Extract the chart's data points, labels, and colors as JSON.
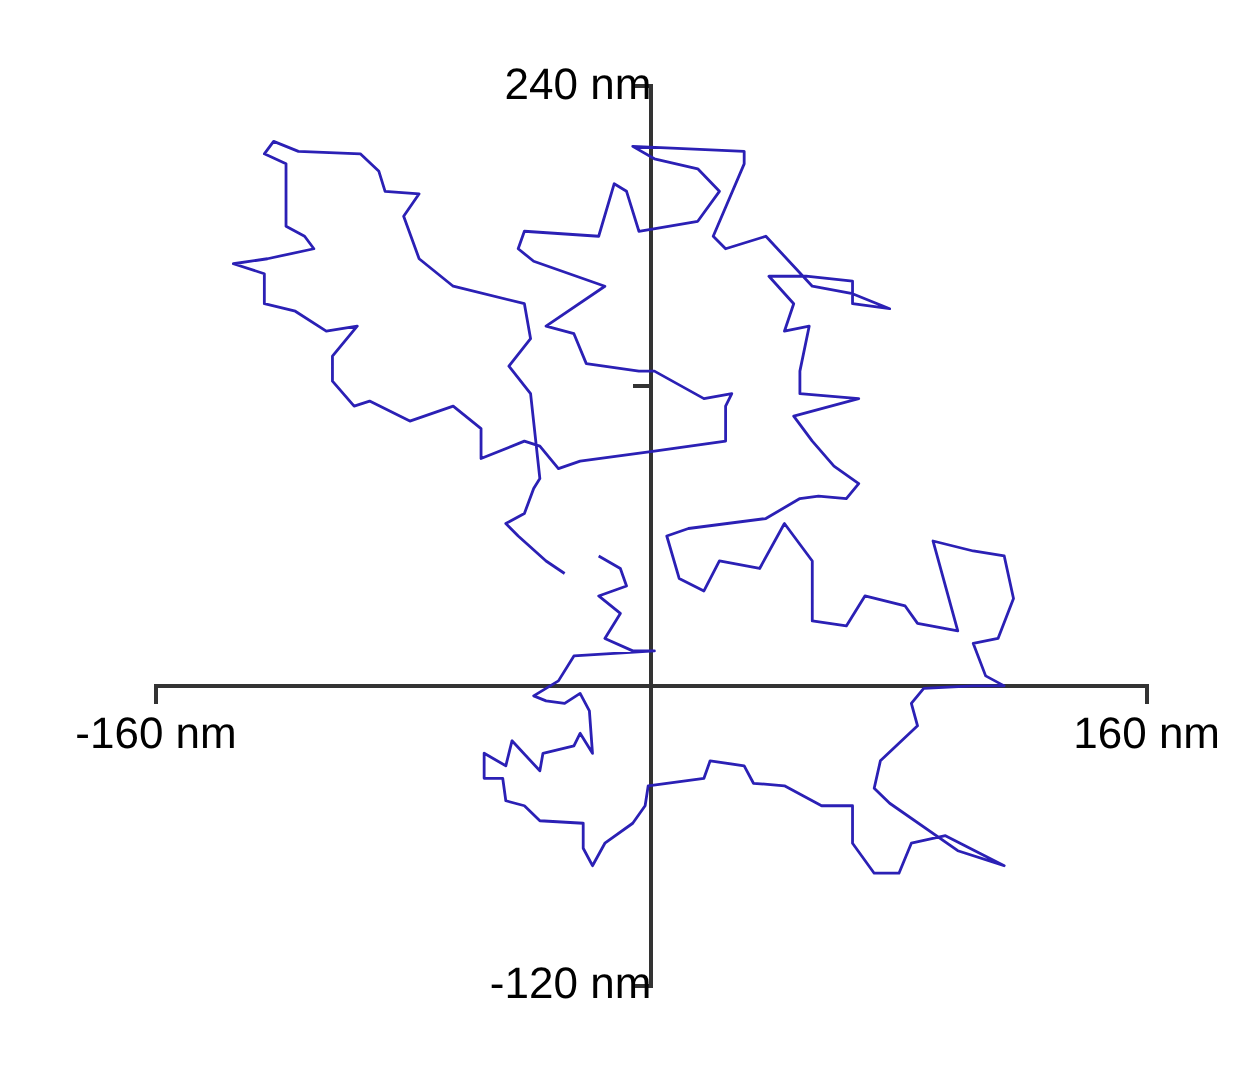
{
  "chart_data": {
    "type": "line",
    "line_style": "solid",
    "xlim": [
      -160,
      160
    ],
    "ylim": [
      -120,
      240
    ],
    "xticks": [
      {
        "value": -160,
        "label": "-160 nm"
      },
      {
        "value": 160,
        "label": "160 nm"
      }
    ],
    "yticks": [
      {
        "value": -120,
        "label": "-120 nm"
      },
      {
        "value": 120,
        "label": null
      },
      {
        "value": 240,
        "label": "240 nm"
      }
    ],
    "series": [
      {
        "color": "#2b20b5",
        "x": [
          -17,
          -10,
          -8,
          -17,
          -10,
          -15,
          -6,
          1,
          -25,
          -30,
          -38,
          -34,
          -28,
          -23,
          -20,
          -19,
          -23,
          -25,
          -35,
          -36,
          -45,
          -47,
          -54,
          -54,
          -48,
          -47,
          -41,
          -36,
          -22,
          -22,
          -19,
          -15,
          -6,
          -2,
          -1,
          5,
          17,
          19,
          30,
          33,
          43,
          55,
          65,
          65,
          72,
          80,
          84,
          95,
          114,
          99,
          77,
          72,
          74,
          80,
          86,
          84,
          88,
          104,
          114,
          108,
          104,
          112,
          117,
          114,
          104,
          91,
          99,
          86,
          82,
          69,
          63,
          52,
          52,
          43,
          35,
          22,
          17,
          9,
          5,
          12,
          37,
          48,
          54,
          63,
          67,
          59,
          52,
          46,
          67,
          48,
          48,
          51,
          43,
          46,
          38,
          50,
          65,
          65,
          77,
          65,
          52,
          37,
          24,
          20,
          30,
          30,
          -6,
          1,
          15,
          22,
          15,
          -4,
          -8,
          -12,
          -17,
          -41,
          -43,
          -38,
          -15,
          -34,
          -25,
          -21,
          -4,
          1,
          17,
          26,
          24,
          24,
          1,
          -23,
          -30,
          -36,
          -41,
          -55,
          -55,
          -64,
          -78,
          -91,
          -96,
          -103,
          -103,
          -95,
          -105,
          -115,
          -125,
          -125,
          -135,
          -124,
          -109,
          -112,
          -118,
          -118,
          -125,
          -122,
          -114,
          -94,
          -88,
          -86,
          -75,
          -80,
          -75,
          -64,
          -41,
          -39,
          -46,
          -39,
          -36,
          -38,
          -41,
          -47,
          -43,
          -34,
          -28
        ],
        "values": [
          52,
          47,
          40,
          36,
          29,
          19,
          14,
          14,
          12,
          2,
          -4,
          -6,
          -7,
          -3,
          -10,
          -27,
          -19,
          -24,
          -27,
          -34,
          -22,
          -32,
          -27,
          -37,
          -37,
          -46,
          -48,
          -54,
          -55,
          -65,
          -72,
          -63,
          -55,
          -48,
          -40,
          -39,
          -37,
          -30,
          -32,
          -39,
          -40,
          -48,
          -48,
          -63,
          -75,
          -75,
          -63,
          -60,
          -72,
          -66,
          -47,
          -41,
          -30,
          -23,
          -16,
          -7,
          -1,
          0,
          0,
          4,
          17,
          19,
          35,
          52,
          54,
          58,
          22,
          25,
          32,
          36,
          24,
          26,
          50,
          65,
          47,
          50,
          38,
          43,
          60,
          63,
          67,
          75,
          76,
          75,
          81,
          88,
          98,
          108,
          115,
          117,
          126,
          144,
          142,
          153,
          164,
          164,
          162,
          153,
          151,
          157,
          160,
          180,
          175,
          180,
          209,
          214,
          216,
          211,
          207,
          198,
          186,
          182,
          198,
          201,
          180,
          182,
          175,
          170,
          160,
          144,
          141,
          129,
          126,
          126,
          115,
          117,
          112,
          98,
          94,
          90,
          87,
          96,
          98,
          91,
          103,
          112,
          106,
          114,
          112,
          122,
          132,
          144,
          142,
          150,
          153,
          165,
          169,
          171,
          175,
          180,
          184,
          209,
          213,
          218,
          214,
          213,
          206,
          198,
          197,
          188,
          171,
          160,
          153,
          139,
          128,
          117,
          83,
          79,
          69,
          65,
          60,
          50,
          45
        ]
      }
    ]
  }
}
